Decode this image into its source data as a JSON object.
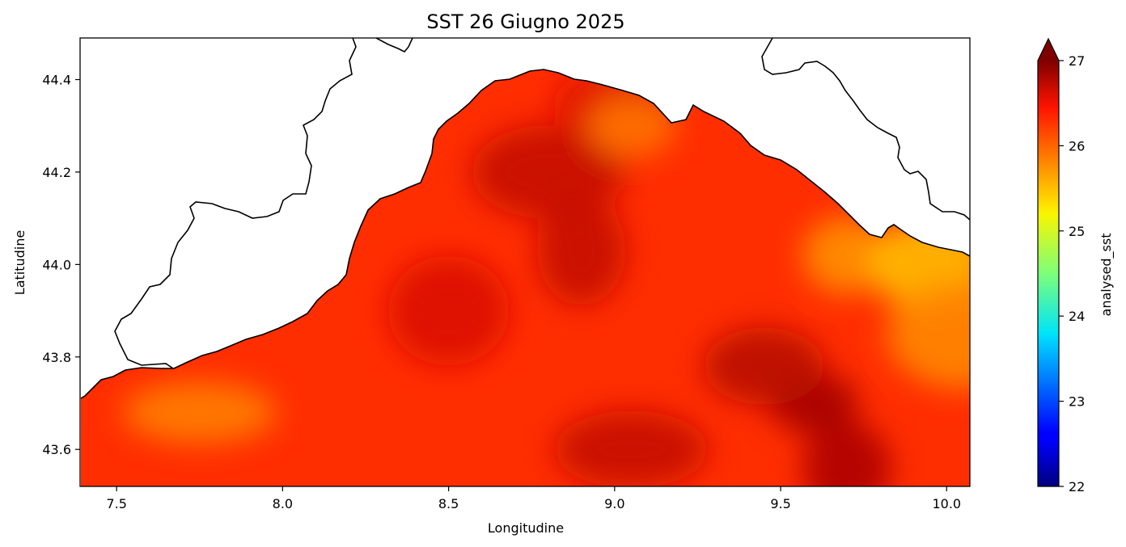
{
  "title": "SST 26 Giugno 2025",
  "xlabel": "Longitudine",
  "ylabel": "Latitudine",
  "colorbar_label": "analysed_sst",
  "colormap": "jet",
  "colorbar_extend": "max",
  "chart_data": {
    "type": "heatmap",
    "title": "SST 26 Giugno 2025",
    "xlabel": "Longitudine",
    "ylabel": "Latitudine",
    "xlim": [
      7.39,
      10.07
    ],
    "ylim": [
      43.52,
      44.49
    ],
    "xticks": [
      7.5,
      8.0,
      8.5,
      9.0,
      9.5,
      10.0
    ],
    "xtick_labels": [
      "7.5",
      "8.0",
      "8.5",
      "9.0",
      "9.5",
      "10.0"
    ],
    "yticks": [
      43.6,
      43.8,
      44.0,
      44.2,
      44.4
    ],
    "ytick_labels": [
      "43.6",
      "43.8",
      "44.0",
      "44.2",
      "44.4"
    ],
    "colorbar": {
      "label": "analysed_sst",
      "range": [
        22,
        27
      ],
      "ticks": [
        22,
        23,
        24,
        25,
        26,
        27
      ],
      "tick_labels": [
        "22",
        "23",
        "24",
        "25",
        "26",
        "27"
      ],
      "extend": "max"
    },
    "value_range_observed": [
      25.4,
      26.9
    ],
    "background_value": 26.3,
    "features": [
      {
        "lon": 9.6,
        "lat": 43.7,
        "value": 26.85
      },
      {
        "lon": 9.45,
        "lat": 43.78,
        "value": 26.75
      },
      {
        "lon": 8.8,
        "lat": 44.2,
        "value": 26.7
      },
      {
        "lon": 8.9,
        "lat": 44.03,
        "value": 26.7
      },
      {
        "lon": 9.0,
        "lat": 44.35,
        "value": 26.6
      },
      {
        "lon": 9.05,
        "lat": 43.6,
        "value": 26.7
      },
      {
        "lon": 9.7,
        "lat": 43.56,
        "value": 26.8
      },
      {
        "lon": 8.5,
        "lat": 43.9,
        "value": 26.6
      },
      {
        "lon": 7.75,
        "lat": 43.68,
        "value": 25.85
      },
      {
        "lon": 9.7,
        "lat": 44.02,
        "value": 25.75
      },
      {
        "lon": 9.95,
        "lat": 44.0,
        "value": 25.5
      },
      {
        "lon": 10.05,
        "lat": 43.85,
        "value": 25.8
      },
      {
        "lon": 9.05,
        "lat": 44.3,
        "value": 25.9
      }
    ]
  }
}
